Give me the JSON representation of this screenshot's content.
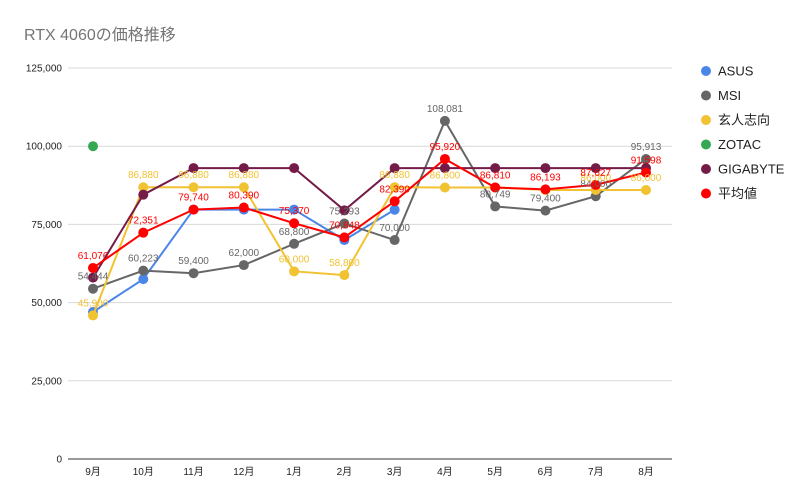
{
  "chart_data": {
    "type": "line",
    "title": "RTX 4060の価格推移",
    "categories": [
      "9月",
      "10月",
      "11月",
      "12月",
      "1月",
      "2月",
      "3月",
      "4月",
      "5月",
      "6月",
      "7月",
      "8月"
    ],
    "y_ticks": [
      "0",
      "25,000",
      "50,000",
      "75,000",
      "100,000",
      "125,000"
    ],
    "ylim": [
      0,
      125000
    ],
    "grid": true,
    "legend_position": "right",
    "series": [
      {
        "name": "ASUS",
        "color": "#4a86e8",
        "values": [
          47000,
          57500,
          79740,
          79740,
          79740,
          70000,
          79700,
          null,
          null,
          null,
          null,
          null
        ],
        "labels": [
          null,
          null,
          null,
          null,
          null,
          null,
          null,
          null,
          null,
          null,
          null,
          null
        ]
      },
      {
        "name": "MSI",
        "color": "#666666",
        "values": [
          54444,
          60223,
          59400,
          62000,
          68800,
          75293,
          70000,
          108081,
          80749,
          79400,
          84000,
          95913
        ],
        "labels": [
          "54,444",
          "60,223",
          "59,400",
          "62,000",
          "68,800",
          "75,293",
          "70,000",
          "108,081",
          "80,749",
          "79,400",
          "84,000",
          "95,913"
        ]
      },
      {
        "name": "玄人志向",
        "color": "#f1c232",
        "values": [
          45900,
          86880,
          86880,
          86880,
          60000,
          58800,
          86880,
          86800,
          86800,
          86000,
          86000,
          86000
        ],
        "labels": [
          "45,900",
          "86,880",
          "86,880",
          "86,880",
          "60,000",
          "58,800",
          "86,880",
          "86,800",
          null,
          null,
          "86,000",
          "86,000"
        ]
      },
      {
        "name": "ZOTAC",
        "color": "#34a853",
        "values": [
          100000,
          null,
          null,
          null,
          null,
          null,
          null,
          null,
          null,
          null,
          null,
          null
        ],
        "labels": [
          null,
          null,
          null,
          null,
          null,
          null,
          null,
          null,
          null,
          null,
          null,
          null
        ]
      },
      {
        "name": "GIGABYTE",
        "color": "#741b47",
        "values": [
          58000,
          84500,
          93000,
          93000,
          93000,
          79500,
          93000,
          93000,
          93000,
          93000,
          93000,
          93000
        ],
        "labels": [
          null,
          null,
          null,
          null,
          null,
          null,
          null,
          null,
          null,
          null,
          null,
          null
        ]
      },
      {
        "name": "平均値",
        "color": "#ff0000",
        "values": [
          61076,
          72351,
          79740,
          80390,
          75370,
          70848,
          82390,
          95920,
          86810,
          86193,
          87627,
          91598
        ],
        "labels": [
          "61,076",
          "72,351",
          "79,740",
          "80,390",
          "75,370",
          "70,848",
          "82,390",
          "95,920",
          "86,810",
          "86,193",
          "87,627",
          "91,598"
        ]
      }
    ]
  }
}
